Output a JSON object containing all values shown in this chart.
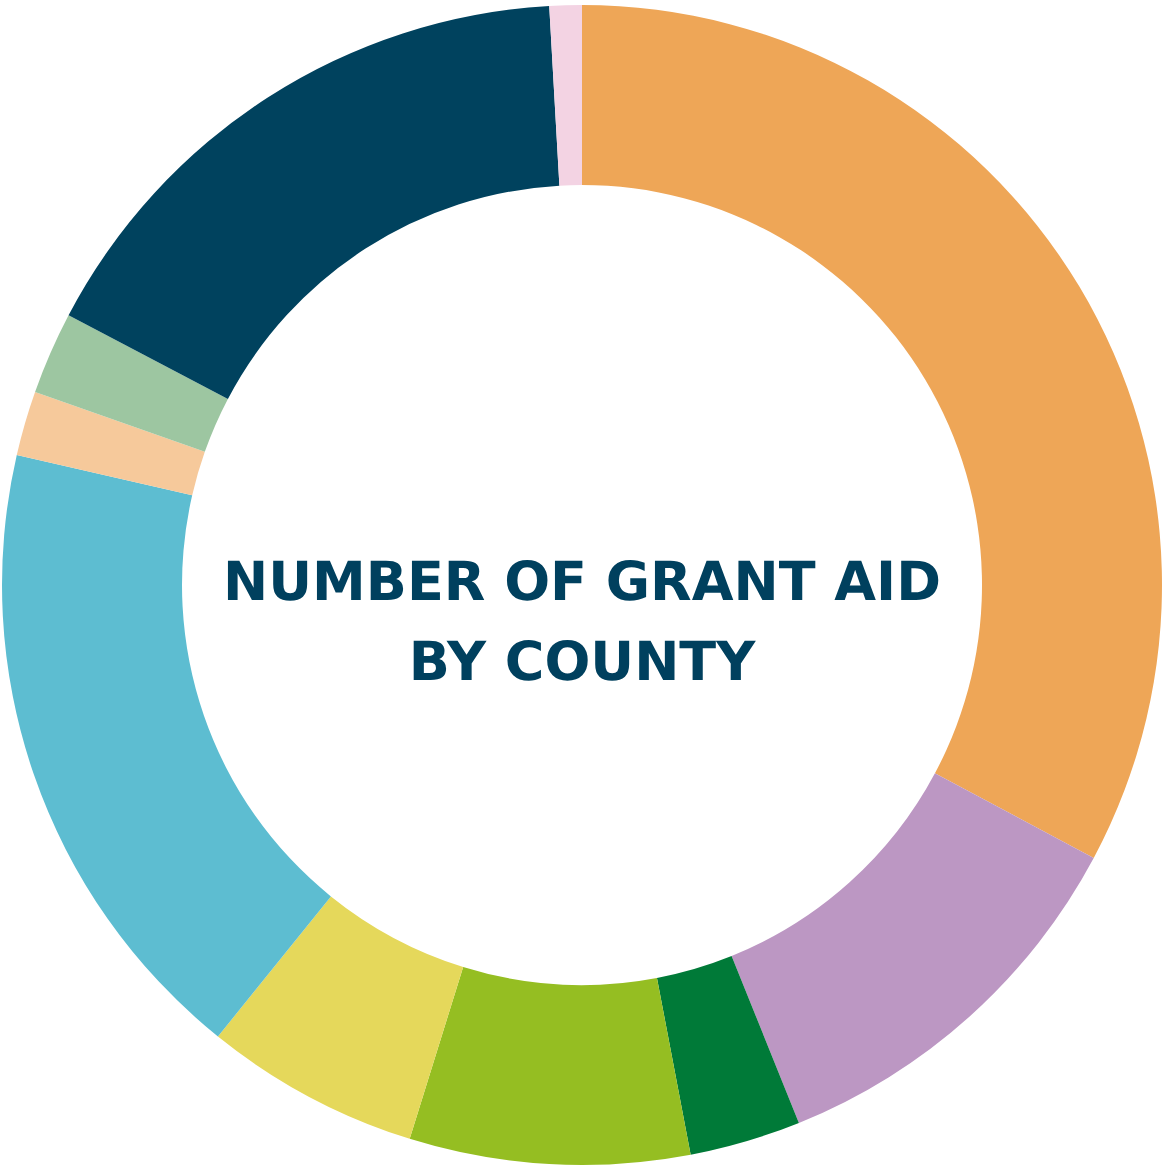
{
  "chart_data": {
    "type": "donut",
    "title": "NUMBER OF GRANT AID\nBY COUNTY",
    "categories": [
      null,
      null,
      null,
      null,
      null,
      null,
      null,
      null,
      null,
      null
    ],
    "values": [
      32.8,
      11.1,
      3.1,
      7.8,
      6.0,
      17.8,
      1.8,
      2.3,
      16.4,
      0.9
    ],
    "colors": [
      "#eea657",
      "#bc97c3",
      "#007a38",
      "#95be22",
      "#e5d85b",
      "#5dbdd1",
      "#f6c99b",
      "#9dc6a1",
      "#00425e",
      "#f3d3e3"
    ]
  }
}
